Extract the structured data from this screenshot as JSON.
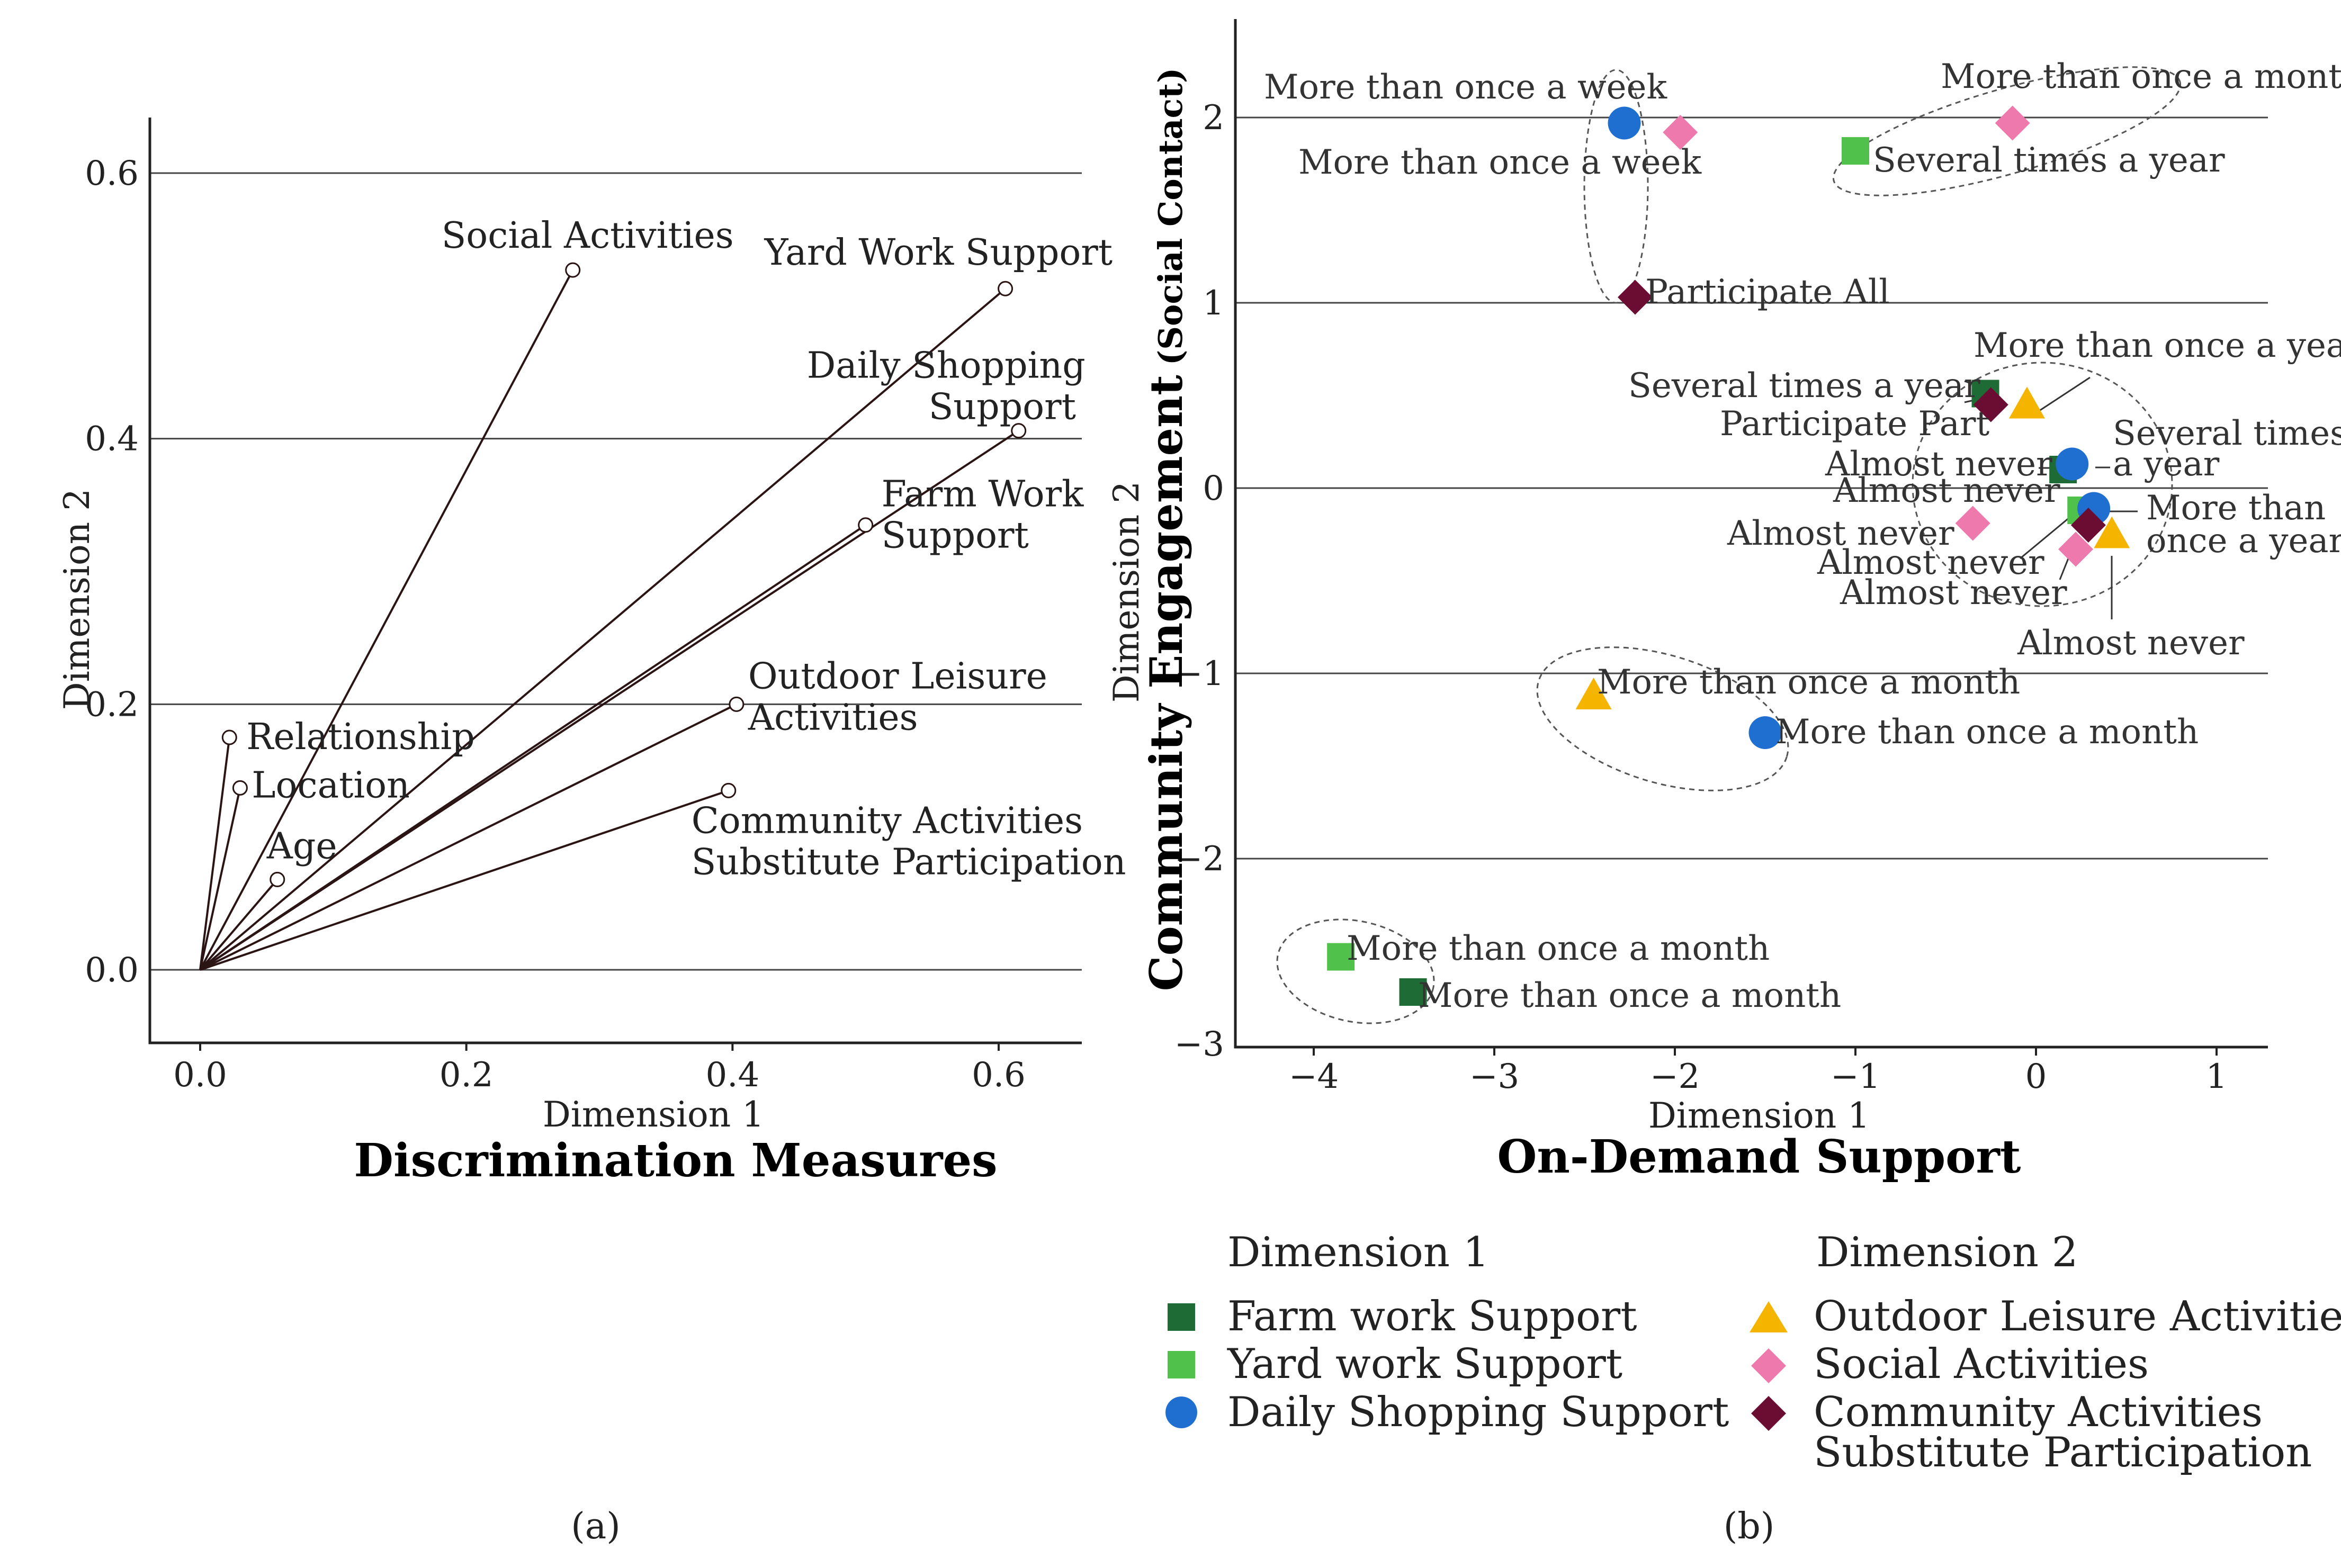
{
  "panel_a": {
    "title": "Discrimination Measures",
    "caption": "(a)",
    "x_axis_title": "Dimension 1",
    "y_axis_title": "Dimension 2"
  },
  "panel_b": {
    "title": "On-Demand Support",
    "caption": "(b)",
    "x_axis_title": "Dimension 1",
    "y_axis_title_small": "Dimension 2",
    "y_axis_title_main": "Community Engagement",
    "y_axis_title_paren": "(Social Contact)",
    "legend": {
      "dim1_heading": "Dimension 1",
      "dim2_heading": "Dimension 2",
      "items": [
        {
          "key": "farm",
          "label": "Farm work Support",
          "color": "#1e6b35",
          "marker": "square"
        },
        {
          "key": "yard",
          "label": "Yard  work Support",
          "color": "#50c24b",
          "marker": "square"
        },
        {
          "key": "shop",
          "label": "Daily Shopping Support",
          "color": "#1f6fd1",
          "marker": "circle"
        },
        {
          "key": "outdoor",
          "label": "Outdoor Leisure Activities",
          "color": "#f4b400",
          "marker": "triangle"
        },
        {
          "key": "social",
          "label": "Social Activities",
          "color": "#ee7aad",
          "marker": "diamond"
        },
        {
          "key": "comm",
          "label": "Community Activities",
          "label2": "Substitute Participation",
          "color": "#6b0c33",
          "marker": "diamond"
        }
      ]
    }
  },
  "chart_data": [
    {
      "type": "scatter",
      "title": "Discrimination Measures",
      "xlabel": "Dimension 1",
      "ylabel": "Dimension 2",
      "xlim": [
        -0.04,
        0.7
      ],
      "ylim": [
        -0.06,
        0.64
      ],
      "xticks": [
        "0.0",
        "0.2",
        "0.4",
        "0.6"
      ],
      "xtick_values": [
        0,
        0.2,
        0.4,
        0.6
      ],
      "yticks": [
        "0.0",
        "0.2",
        "0.4",
        "0.6"
      ],
      "ytick_values": [
        0,
        0.2,
        0.4,
        0.6
      ],
      "grid": "horizontal",
      "vectors": [
        {
          "name": "Social Activities",
          "lines": [
            "Social Activities"
          ],
          "x": 0.28,
          "y": 0.527
        },
        {
          "name": "Yard Work Support",
          "lines": [
            "Yard Work Support"
          ],
          "x": 0.605,
          "y": 0.513
        },
        {
          "name": "Daily Shopping Support",
          "lines": [
            "Daily Shopping",
            "Support"
          ],
          "x": 0.615,
          "y": 0.406
        },
        {
          "name": "Farm Work Support",
          "lines": [
            "Farm Work",
            "Support"
          ],
          "x": 0.5,
          "y": 0.335
        },
        {
          "name": "Outdoor Leisure Activities",
          "lines": [
            "Outdoor Leisure",
            "Activities"
          ],
          "x": 0.403,
          "y": 0.2
        },
        {
          "name": "Community Activities Substitute Participation",
          "lines": [
            "Community Activities",
            "Substitute Participation"
          ],
          "x": 0.397,
          "y": 0.135
        },
        {
          "name": "Relationship",
          "lines": [
            "Relationship"
          ],
          "x": 0.022,
          "y": 0.175
        },
        {
          "name": "Location",
          "lines": [
            "Location"
          ],
          "x": 0.03,
          "y": 0.137
        },
        {
          "name": "Age",
          "lines": [
            "Age"
          ],
          "x": 0.058,
          "y": 0.068
        }
      ]
    },
    {
      "type": "scatter",
      "title": "On-Demand Support",
      "xlabel": "Dimension 1",
      "ylabel": "Dimension 2",
      "xlim": [
        -4.3,
        1.3
      ],
      "ylim": [
        -3,
        2.55
      ],
      "xticks": [
        "−4",
        "−3",
        "−2",
        "−1",
        "0",
        "1"
      ],
      "xtick_values": [
        -4,
        -3,
        -2,
        -1,
        0,
        1
      ],
      "yticks": [
        "−3",
        "−2",
        "−1",
        "0",
        "1",
        "2"
      ],
      "ytick_values": [
        -3,
        -2,
        -1,
        0,
        1,
        2
      ],
      "grid": "horizontal",
      "series": [
        {
          "name": "Farm work Support",
          "key": "farm",
          "points": [
            {
              "label": "Several times a year",
              "x": -0.28,
              "y": 0.51
            },
            {
              "label": "Almost never",
              "x": 0.15,
              "y": 0.1
            },
            {
              "label": "More than once a month",
              "x": -3.45,
              "y": -2.72
            }
          ]
        },
        {
          "name": "Yard work Support",
          "key": "yard",
          "points": [
            {
              "label": "Several times a year",
              "x": -1.0,
              "y": 1.82
            },
            {
              "label": "Almost never",
              "x": 0.25,
              "y": -0.12
            },
            {
              "label": "More than once a month",
              "x": -3.85,
              "y": -2.53
            }
          ]
        },
        {
          "name": "Daily Shopping Support",
          "key": "shop",
          "points": [
            {
              "label": "More than once a week",
              "x": -2.28,
              "y": 1.97
            },
            {
              "label": "Several times a year",
              "x": 0.2,
              "y": 0.13
            },
            {
              "label": "More than once a year",
              "x": 0.32,
              "y": -0.11
            },
            {
              "label": "More than once a month",
              "x": -1.5,
              "y": -1.32
            }
          ]
        },
        {
          "name": "Outdoor Leisure Activities",
          "key": "outdoor",
          "points": [
            {
              "label": "More than once a year",
              "x": -0.05,
              "y": 0.45
            },
            {
              "label": "Almost never",
              "x": 0.42,
              "y": -0.25
            },
            {
              "label": "More than once a month",
              "x": -2.45,
              "y": -1.12
            }
          ]
        },
        {
          "name": "Social Activities",
          "key": "social",
          "points": [
            {
              "label": "More than once a week",
              "x": -1.97,
              "y": 1.92
            },
            {
              "label": "More than once a month",
              "x": -0.13,
              "y": 1.97
            },
            {
              "label": "Almost never",
              "x": -0.35,
              "y": -0.19
            },
            {
              "label": "Almost never",
              "x": 0.22,
              "y": -0.33
            }
          ]
        },
        {
          "name": "Community Activities Substitute Participation",
          "key": "comm",
          "points": [
            {
              "label": "Participate All",
              "x": -2.22,
              "y": 1.03
            },
            {
              "label": "Participate Part",
              "x": -0.25,
              "y": 0.45
            },
            {
              "label": "Almost never",
              "x": 0.29,
              "y": -0.2
            }
          ]
        }
      ]
    }
  ]
}
